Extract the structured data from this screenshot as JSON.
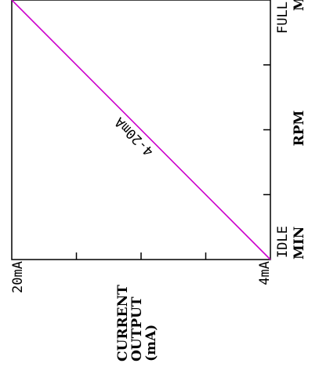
{
  "chart_data": {
    "type": "line",
    "x_axis": {
      "label_lines": [
        "RPM"
      ],
      "tick_labels": [
        {
          "value": 0,
          "text": "IDLE"
        },
        {
          "value": 1,
          "text": "FULL"
        }
      ],
      "range": [
        0,
        1
      ],
      "minor_ticks": [
        0.25,
        0.5,
        0.75
      ]
    },
    "y_axis": {
      "label_lines": [
        "CURRENT",
        "OUTPUT",
        "(mA)"
      ],
      "tick_labels": [
        {
          "value": 4,
          "text": "4mA"
        },
        {
          "value": 20,
          "text": "20mA"
        }
      ],
      "range": [
        4,
        20
      ],
      "minor_ticks": [
        8,
        12,
        16
      ]
    },
    "edge_labels": {
      "min": "MIN",
      "max": "MA"
    },
    "series": [
      {
        "name": "4-20mA",
        "color": "#cc00cc",
        "points": [
          {
            "x": 0,
            "y": 4
          },
          {
            "x": 1,
            "y": 20
          }
        ]
      }
    ],
    "grid": false,
    "legend": "none"
  }
}
